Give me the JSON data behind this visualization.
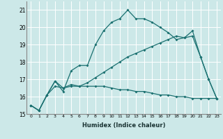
{
  "xlabel": "Humidex (Indice chaleur)",
  "bg_color": "#cce8e8",
  "line_color": "#1a7070",
  "grid_color": "#ffffff",
  "xlim": [
    -0.5,
    23.5
  ],
  "ylim": [
    15,
    21.5
  ],
  "yticks": [
    15,
    16,
    17,
    18,
    19,
    20,
    21
  ],
  "xticks": [
    0,
    1,
    2,
    3,
    4,
    5,
    6,
    7,
    8,
    9,
    10,
    11,
    12,
    13,
    14,
    15,
    16,
    17,
    18,
    19,
    20,
    21,
    22,
    23
  ],
  "line1_x": [
    0,
    1,
    2,
    3,
    4,
    5,
    6,
    7,
    8,
    9,
    10,
    11,
    12,
    13,
    14,
    15,
    16,
    17,
    18,
    19,
    20,
    21,
    22,
    23
  ],
  "line1_y": [
    15.5,
    15.2,
    16.1,
    16.9,
    16.3,
    17.5,
    17.8,
    17.8,
    19.0,
    19.8,
    20.3,
    20.5,
    21.0,
    20.5,
    20.5,
    20.3,
    20.0,
    19.7,
    19.3,
    19.4,
    19.8,
    18.3,
    17.0,
    15.9
  ],
  "line2_x": [
    0,
    1,
    2,
    3,
    4,
    5,
    6,
    7,
    8,
    9,
    10,
    11,
    12,
    13,
    14,
    15,
    16,
    17,
    18,
    19,
    20,
    21,
    22,
    23
  ],
  "line2_y": [
    15.5,
    15.2,
    16.1,
    16.9,
    16.5,
    16.7,
    16.6,
    16.8,
    17.1,
    17.4,
    17.7,
    18.0,
    18.3,
    18.5,
    18.7,
    18.9,
    19.1,
    19.3,
    19.5,
    19.4,
    19.5,
    18.3,
    17.0,
    15.9
  ],
  "line3_x": [
    0,
    1,
    2,
    3,
    4,
    5,
    6,
    7,
    8,
    9,
    10,
    11,
    12,
    13,
    14,
    15,
    16,
    17,
    18,
    19,
    20,
    21,
    22,
    23
  ],
  "line3_y": [
    15.5,
    15.2,
    16.1,
    16.6,
    16.5,
    16.6,
    16.6,
    16.6,
    16.6,
    16.6,
    16.5,
    16.4,
    16.4,
    16.3,
    16.3,
    16.2,
    16.1,
    16.1,
    16.0,
    16.0,
    15.9,
    15.9,
    15.9,
    15.9
  ]
}
